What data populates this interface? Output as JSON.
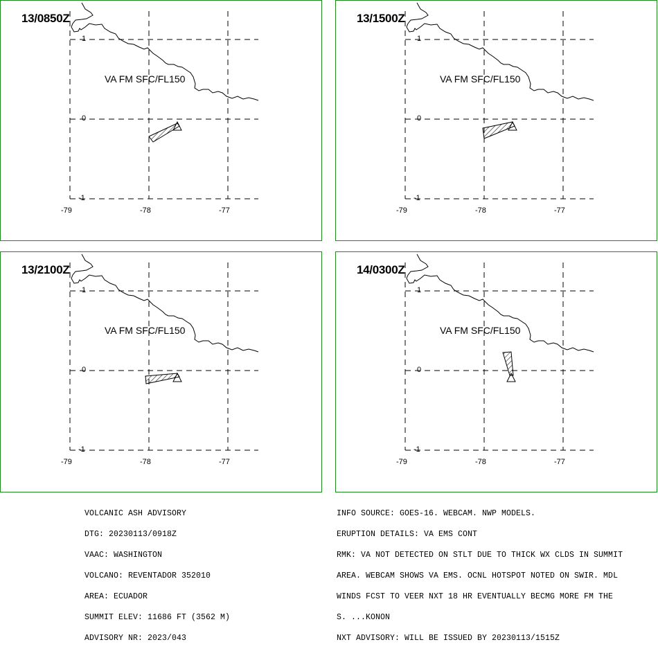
{
  "panels": [
    {
      "time": "13/0850Z",
      "label": "VA FM SFC/FL150"
    },
    {
      "time": "13/1500Z",
      "label": "VA FM SFC/FL150"
    },
    {
      "time": "13/2100Z",
      "label": "VA FM SFC/FL150"
    },
    {
      "time": "14/0300Z",
      "label": "VA FM SFC/FL150"
    }
  ],
  "axes": {
    "lat_ticks": [
      "1",
      "0",
      "-1"
    ],
    "lon_ticks": [
      "-79",
      "-78",
      "-77"
    ]
  },
  "advisory_left": [
    "VOLCANIC ASH ADVISORY",
    "DTG: 20230113/0918Z",
    "VAAC: WASHINGTON",
    "VOLCANO: REVENTADOR 352010",
    "AREA: ECUADOR",
    "SUMMIT ELEV: 11686 FT (3562 M)",
    "ADVISORY NR: 2023/043"
  ],
  "advisory_right": [
    "INFO SOURCE: GOES-16. WEBCAM. NWP MODELS.",
    "ERUPTION DETAILS: VA EMS CONT",
    "RMK: VA NOT DETECTED ON STLT DUE TO THICK WX CLDS IN SUMMIT",
    "AREA. WEBCAM SHOWS VA EMS. OCNL HOTSPOT NOTED ON SWIR. MDL",
    "WINDS FCST TO VEER NXT 18 HR EVENTUALLY BECMG MORE FM THE",
    "S. ...KONON",
    "NXT ADVISORY: WILL BE ISSUED BY 20230113/1515Z"
  ],
  "colors": {
    "panel_border": "#1a8a1a"
  }
}
